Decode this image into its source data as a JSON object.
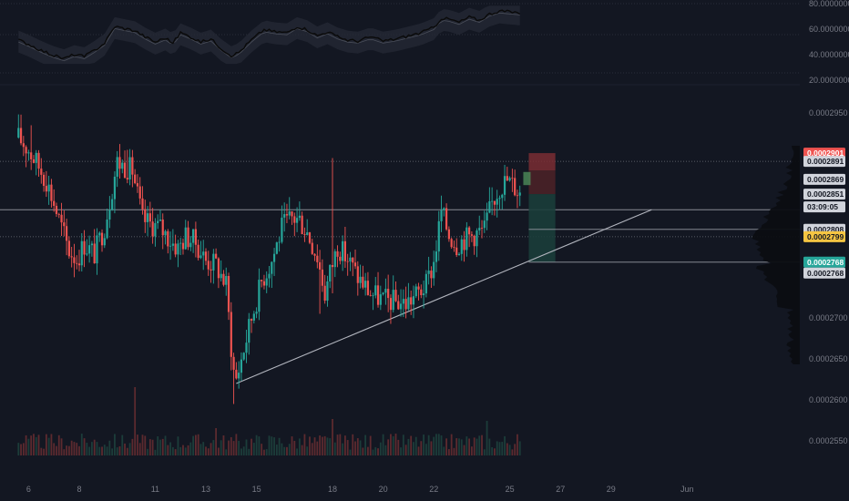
{
  "colors": {
    "background": "#131722",
    "grid": "#1e222d",
    "axis_text": "#787b86",
    "bull": "#26a69a",
    "bear": "#ef5350",
    "bull_volume": "#1c3d3a",
    "bear_volume": "#5c2a2f",
    "rsi_line": "#0a0a0a",
    "rsi_band": "#2a2e39",
    "trendline": "#b2b5be",
    "long_profit_zone": "#1b3d3a",
    "long_stop_zone": "#4a2127",
    "volume_profile": "#0b0d12"
  },
  "chart_data": {
    "type": "candlestick",
    "title": "",
    "xlabel": "",
    "ylabel": "",
    "price_axis": {
      "ylim": [
        0.000254,
        0.0002985
      ],
      "ticks": [
        "0.0002950",
        "0.0002700",
        "0.0002650",
        "0.0002600",
        "0.0002550"
      ]
    },
    "rsi_axis": {
      "ylim": [
        10,
        80
      ],
      "ticks": [
        "80.0000000",
        "60.0000000",
        "40.0000000",
        "20.0000000"
      ]
    },
    "x_axis": {
      "labels": [
        "6",
        "8",
        "11",
        "13",
        "15",
        "18",
        "20",
        "22",
        "25",
        "27",
        "29",
        "Jun"
      ]
    },
    "price_labels": [
      {
        "value": "0.0002901",
        "price": 0.0002901,
        "kind": "stop"
      },
      {
        "value": "0.0002891",
        "price": 0.0002891,
        "kind": "level"
      },
      {
        "value": "0.0002869",
        "price": 0.0002869,
        "kind": "level"
      },
      {
        "value": "0.0002851",
        "price": 0.0002851,
        "kind": "last"
      },
      {
        "value": "03:09:05",
        "price": 0.0002838,
        "kind": "countdown"
      },
      {
        "value": "0.0002808",
        "price": 0.0002808,
        "kind": "entry"
      },
      {
        "value": "0.0002799",
        "price": 0.0002799,
        "kind": "prev_close"
      },
      {
        "value": "0.0002768",
        "price": 0.0002768,
        "kind": "target"
      },
      {
        "value": "0.0002768",
        "price": 0.0002758,
        "kind": "level"
      }
    ],
    "horizontal_levels": [
      {
        "price": 0.0002891,
        "style": "dotted"
      },
      {
        "price": 0.0002832,
        "style": "solid"
      },
      {
        "price": 0.0002799,
        "style": "dotted"
      }
    ],
    "trendline": {
      "start_day": 14.2,
      "start_price": 0.000262,
      "end_day": 30.6,
      "end_price": 0.0002832
    },
    "position": {
      "type": "long",
      "entry": 0.0002808,
      "stop": 0.0002901,
      "target": 0.0002768,
      "start_day": 25.75,
      "end_day": 26.8
    },
    "candle_anchors": [
      [
        5.6,
        0.000292
      ],
      [
        6.0,
        0.0002905
      ],
      [
        6.3,
        0.000289
      ],
      [
        6.7,
        0.0002868
      ],
      [
        7.0,
        0.000284
      ],
      [
        7.3,
        0.000281
      ],
      [
        7.6,
        0.0002782
      ],
      [
        7.9,
        0.0002772
      ],
      [
        8.2,
        0.000279
      ],
      [
        8.6,
        0.0002778
      ],
      [
        9.0,
        0.0002812
      ],
      [
        9.5,
        0.000289
      ],
      [
        9.8,
        0.0002885
      ],
      [
        10.1,
        0.000288
      ],
      [
        10.5,
        0.000282
      ],
      [
        10.8,
        0.0002815
      ],
      [
        11.2,
        0.000281
      ],
      [
        11.6,
        0.0002795
      ],
      [
        11.9,
        0.0002785
      ],
      [
        12.2,
        0.00028
      ],
      [
        12.6,
        0.0002792
      ],
      [
        13.0,
        0.000277
      ],
      [
        13.4,
        0.0002765
      ],
      [
        13.8,
        0.000274
      ],
      [
        14.0,
        0.0002665
      ],
      [
        14.15,
        0.000262
      ],
      [
        14.4,
        0.000265
      ],
      [
        14.8,
        0.00027
      ],
      [
        15.2,
        0.0002745
      ],
      [
        15.6,
        0.000277
      ],
      [
        16.0,
        0.000281
      ],
      [
        16.4,
        0.0002822
      ],
      [
        16.7,
        0.000282
      ],
      [
        17.0,
        0.0002805
      ],
      [
        17.4,
        0.0002775
      ],
      [
        17.7,
        0.000273
      ],
      [
        17.9,
        0.0002755
      ],
      [
        18.2,
        0.0002788
      ],
      [
        18.6,
        0.0002772
      ],
      [
        19.0,
        0.000275
      ],
      [
        19.5,
        0.000273
      ],
      [
        20.0,
        0.0002722
      ],
      [
        20.5,
        0.000272
      ],
      [
        20.9,
        0.0002718
      ],
      [
        21.3,
        0.0002728
      ],
      [
        21.7,
        0.000274
      ],
      [
        22.0,
        0.0002768
      ],
      [
        22.3,
        0.000283
      ],
      [
        22.6,
        0.0002802
      ],
      [
        22.9,
        0.000279
      ],
      [
        23.2,
        0.0002797
      ],
      [
        23.6,
        0.0002802
      ],
      [
        24.0,
        0.0002808
      ],
      [
        24.3,
        0.000284
      ],
      [
        24.6,
        0.000286
      ],
      [
        24.9,
        0.0002868
      ],
      [
        25.2,
        0.000286
      ],
      [
        25.45,
        0.0002851
      ]
    ],
    "rsi_anchors": [
      [
        5.6,
        45
      ],
      [
        6.0,
        41
      ],
      [
        6.5,
        35
      ],
      [
        7.0,
        30
      ],
      [
        7.4,
        27
      ],
      [
        7.8,
        31
      ],
      [
        8.2,
        29
      ],
      [
        8.6,
        35
      ],
      [
        9.0,
        42
      ],
      [
        9.4,
        58
      ],
      [
        9.8,
        56
      ],
      [
        10.2,
        54
      ],
      [
        10.6,
        48
      ],
      [
        11.0,
        43
      ],
      [
        11.4,
        47
      ],
      [
        11.7,
        42
      ],
      [
        12.0,
        52
      ],
      [
        12.4,
        48
      ],
      [
        12.8,
        43
      ],
      [
        13.2,
        46
      ],
      [
        13.6,
        37
      ],
      [
        14.0,
        30
      ],
      [
        14.3,
        33
      ],
      [
        14.8,
        45
      ],
      [
        15.3,
        55
      ],
      [
        15.7,
        53
      ],
      [
        16.2,
        52
      ],
      [
        16.6,
        58
      ],
      [
        17.0,
        55
      ],
      [
        17.4,
        49
      ],
      [
        17.8,
        53
      ],
      [
        18.2,
        48
      ],
      [
        18.6,
        45
      ],
      [
        19.0,
        44
      ],
      [
        19.5,
        48
      ],
      [
        20.0,
        44
      ],
      [
        20.5,
        46
      ],
      [
        21.0,
        49
      ],
      [
        21.5,
        52
      ],
      [
        22.0,
        57
      ],
      [
        22.3,
        66
      ],
      [
        22.6,
        65
      ],
      [
        23.0,
        62
      ],
      [
        23.4,
        67
      ],
      [
        23.8,
        64
      ],
      [
        24.2,
        70
      ],
      [
        24.6,
        73
      ],
      [
        25.0,
        72
      ],
      [
        25.45,
        71
      ]
    ]
  }
}
